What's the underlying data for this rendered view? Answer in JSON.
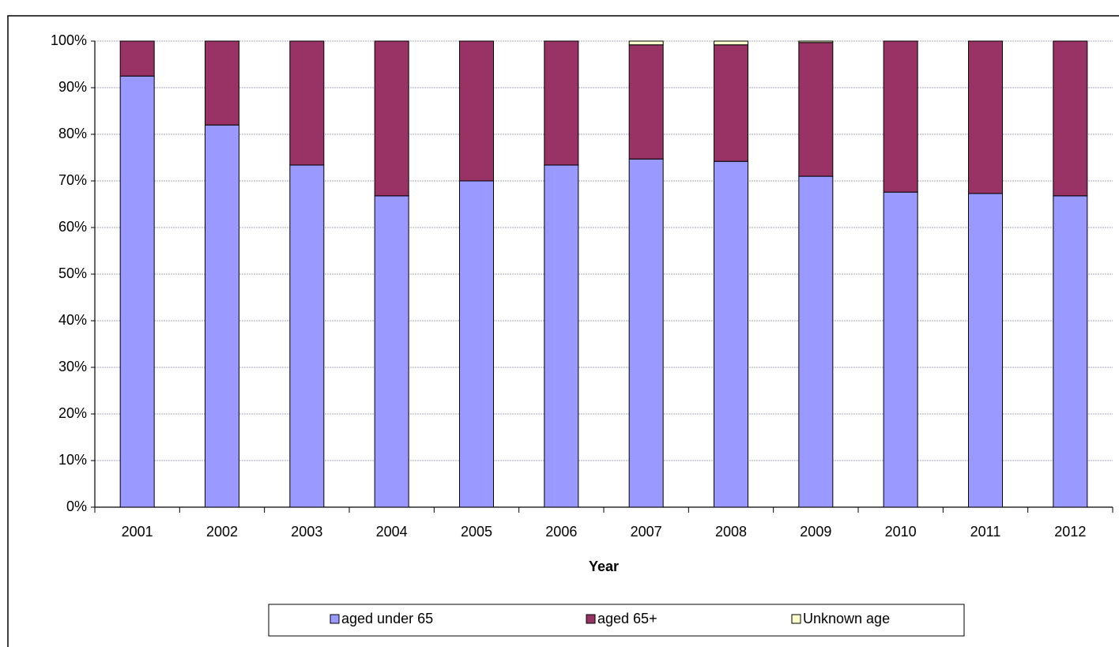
{
  "chart_data": {
    "type": "stacked-bar",
    "x_label": "Year",
    "categories": [
      "2001",
      "2002",
      "2003",
      "2004",
      "2005",
      "2006",
      "2007",
      "2008",
      "2009",
      "2010",
      "2011",
      "2012"
    ],
    "series": [
      {
        "name": "aged under 65",
        "color": "#9999ff",
        "values": [
          92.5,
          82.0,
          73.4,
          66.8,
          70.0,
          73.4,
          74.7,
          74.2,
          71.0,
          67.6,
          67.3,
          66.8
        ]
      },
      {
        "name": "aged 65+",
        "color": "#993366",
        "values": [
          7.5,
          18.0,
          26.6,
          33.2,
          30.0,
          26.6,
          24.5,
          25.0,
          28.7,
          32.4,
          32.7,
          33.2
        ]
      },
      {
        "name": "Unknown age",
        "color": "#ffffcc",
        "values": [
          0,
          0,
          0,
          0,
          0,
          0,
          0.8,
          0.8,
          0.3,
          0,
          0,
          0
        ]
      }
    ],
    "ylim": [
      0,
      100
    ],
    "yticks": [
      {
        "value": 0,
        "label": "0%"
      },
      {
        "value": 10,
        "label": "10%"
      },
      {
        "value": 20,
        "label": "20%"
      },
      {
        "value": 30,
        "label": "30%"
      },
      {
        "value": 40,
        "label": "40%"
      },
      {
        "value": 50,
        "label": "50%"
      },
      {
        "value": 60,
        "label": "60%"
      },
      {
        "value": 70,
        "label": "70%"
      },
      {
        "value": 80,
        "label": "80%"
      },
      {
        "value": 90,
        "label": "90%"
      },
      {
        "value": 100,
        "label": "100%"
      }
    ],
    "grid": true,
    "legend": "bottom"
  }
}
